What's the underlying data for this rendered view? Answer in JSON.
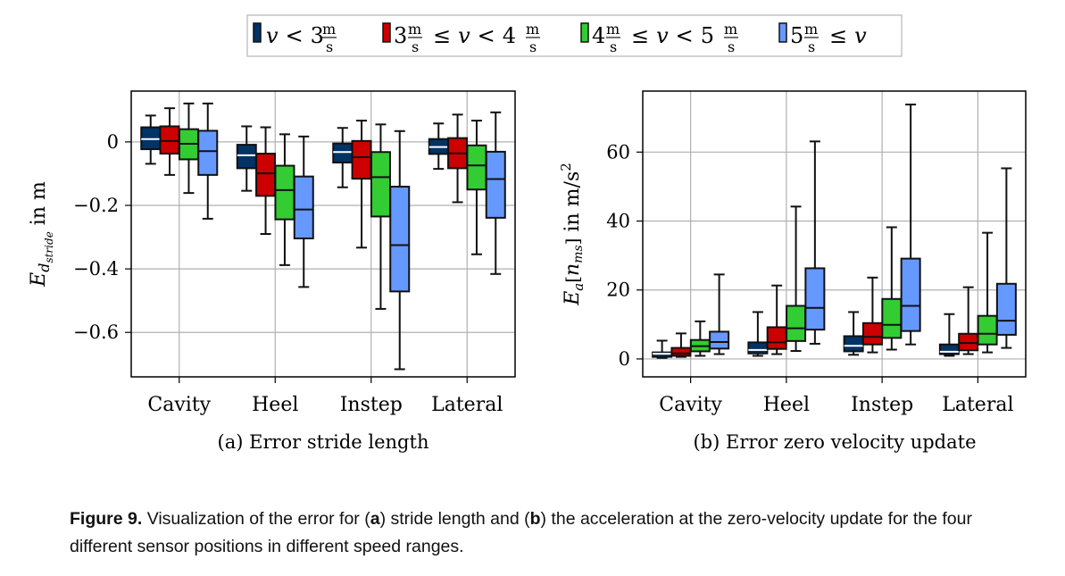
{
  "legend": {
    "items": [
      {
        "label": "v < 3 m/s",
        "color": "#003366"
      },
      {
        "label": "3 m/s ≤ v < 4 m/s",
        "color": "#CC0000"
      },
      {
        "label": "4 m/s ≤ v < 5 m/s",
        "color": "#33CC33"
      },
      {
        "label": "5 m/s ≤ v",
        "color": "#6699FF"
      }
    ]
  },
  "chart_data": [
    {
      "type": "box",
      "title": "(a) Error stride length",
      "xlabel": "",
      "ylabel": "E_d_stride in m",
      "ylim": [
        -0.74,
        0.16
      ],
      "yticks": [
        0,
        -0.2,
        -0.4,
        -0.6
      ],
      "ytick_labels": [
        "0",
        "−0.2",
        "−0.4",
        "−0.6"
      ],
      "grid": true,
      "legend_position": "top",
      "categories": [
        "Cavity",
        "Heel",
        "Instep",
        "Lateral"
      ],
      "series": [
        {
          "name": "v < 3 m/s",
          "boxes": [
            {
              "whisker_low": -0.069,
              "q1": -0.023,
              "median": 0.009,
              "q3": 0.046,
              "whisker_high": 0.083
            },
            {
              "whisker_low": -0.154,
              "q1": -0.083,
              "median": -0.042,
              "q3": -0.009,
              "whisker_high": 0.049
            },
            {
              "whisker_low": -0.143,
              "q1": -0.065,
              "median": -0.032,
              "q3": -0.005,
              "whisker_high": 0.044
            },
            {
              "whisker_low": -0.085,
              "q1": -0.038,
              "median": -0.016,
              "q3": 0.009,
              "whisker_high": 0.058
            }
          ]
        },
        {
          "name": "3 m/s ≤ v < 4 m/s",
          "boxes": [
            {
              "whisker_low": -0.104,
              "q1": -0.037,
              "median": 0.003,
              "q3": 0.049,
              "whisker_high": 0.106
            },
            {
              "whisker_low": -0.29,
              "q1": -0.17,
              "median": -0.099,
              "q3": -0.037,
              "whisker_high": 0.046
            },
            {
              "whisker_low": -0.333,
              "q1": -0.116,
              "median": -0.048,
              "q3": 0.003,
              "whisker_high": 0.067
            },
            {
              "whisker_low": -0.19,
              "q1": -0.083,
              "median": -0.036,
              "q3": 0.012,
              "whisker_high": 0.086
            }
          ]
        },
        {
          "name": "4 m/s ≤ v < 5 m/s",
          "boxes": [
            {
              "whisker_low": -0.161,
              "q1": -0.055,
              "median": -0.006,
              "q3": 0.04,
              "whisker_high": 0.121
            },
            {
              "whisker_low": -0.388,
              "q1": -0.244,
              "median": -0.152,
              "q3": -0.075,
              "whisker_high": 0.024
            },
            {
              "whisker_low": -0.526,
              "q1": -0.235,
              "median": -0.111,
              "q3": -0.032,
              "whisker_high": 0.055
            },
            {
              "whisker_low": -0.354,
              "q1": -0.15,
              "median": -0.074,
              "q3": -0.011,
              "whisker_high": 0.067
            }
          ]
        },
        {
          "name": "5 m/s ≤ v",
          "boxes": [
            {
              "whisker_low": -0.242,
              "q1": -0.104,
              "median": -0.029,
              "q3": 0.035,
              "whisker_high": 0.121
            },
            {
              "whisker_low": -0.457,
              "q1": -0.304,
              "median": -0.213,
              "q3": -0.109,
              "whisker_high": 0.017
            },
            {
              "whisker_low": -0.716,
              "q1": -0.471,
              "median": -0.325,
              "q3": -0.141,
              "whisker_high": 0.034
            },
            {
              "whisker_low": -0.416,
              "q1": -0.239,
              "median": -0.117,
              "q3": -0.031,
              "whisker_high": 0.093
            }
          ]
        }
      ]
    },
    {
      "type": "box",
      "title": "(b) Error zero velocity update",
      "xlabel": "",
      "ylabel": "E_a[n_ms] in m/s²",
      "ylim": [
        -5.2,
        77.7
      ],
      "yticks": [
        0,
        20,
        40,
        60
      ],
      "ytick_labels": [
        "0",
        "20",
        "40",
        "60"
      ],
      "grid": true,
      "legend_position": "top",
      "categories": [
        "Cavity",
        "Heel",
        "Instep",
        "Lateral"
      ],
      "series": [
        {
          "name": "v < 3 m/s",
          "boxes": [
            {
              "whisker_low": 0.3,
              "q1": 0.6,
              "median": 1.5,
              "q3": 1.9,
              "whisker_high": 5.3
            },
            {
              "whisker_low": 0.9,
              "q1": 1.6,
              "median": 2.6,
              "q3": 4.8,
              "whisker_high": 13.6
            },
            {
              "whisker_low": 1.2,
              "q1": 2.2,
              "median": 3.8,
              "q3": 6.6,
              "whisker_high": 13.6
            },
            {
              "whisker_low": 0.9,
              "q1": 1.4,
              "median": 2.1,
              "q3": 4.2,
              "whisker_high": 13.0
            }
          ]
        },
        {
          "name": "3 m/s ≤ v < 4 m/s",
          "boxes": [
            {
              "whisker_low": 0.6,
              "q1": 0.9,
              "median": 1.6,
              "q3": 3.2,
              "whisker_high": 7.4
            },
            {
              "whisker_low": 1.4,
              "q1": 2.9,
              "median": 4.8,
              "q3": 9.2,
              "whisker_high": 21.3
            },
            {
              "whisker_low": 1.9,
              "q1": 4.2,
              "median": 6.4,
              "q3": 10.4,
              "whisker_high": 23.6
            },
            {
              "whisker_low": 1.4,
              "q1": 2.5,
              "median": 4.6,
              "q3": 7.3,
              "whisker_high": 20.8
            }
          ]
        },
        {
          "name": "4 m/s ≤ v < 5 m/s",
          "boxes": [
            {
              "whisker_low": 0.9,
              "q1": 2.2,
              "median": 3.7,
              "q3": 5.5,
              "whisker_high": 10.9
            },
            {
              "whisker_low": 2.3,
              "q1": 5.2,
              "median": 8.9,
              "q3": 15.4,
              "whisker_high": 44.2
            },
            {
              "whisker_low": 2.7,
              "q1": 6.1,
              "median": 9.9,
              "q3": 17.4,
              "whisker_high": 38.2
            },
            {
              "whisker_low": 1.9,
              "q1": 4.2,
              "median": 7.3,
              "q3": 12.5,
              "whisker_high": 36.6
            }
          ]
        },
        {
          "name": "5 m/s ≤ v",
          "boxes": [
            {
              "whisker_low": 1.4,
              "q1": 3.0,
              "median": 4.9,
              "q3": 7.9,
              "whisker_high": 24.5
            },
            {
              "whisker_low": 4.4,
              "q1": 8.5,
              "median": 14.8,
              "q3": 26.3,
              "whisker_high": 63.1
            },
            {
              "whisker_low": 4.2,
              "q1": 8.1,
              "median": 15.4,
              "q3": 29.1,
              "whisker_high": 73.8
            },
            {
              "whisker_low": 3.2,
              "q1": 7.0,
              "median": 11.1,
              "q3": 21.8,
              "whisker_high": 55.3
            }
          ]
        }
      ]
    }
  ],
  "axis_labels": {
    "left_y_main": "E",
    "left_y_sub": "d",
    "left_y_subsub": "stride",
    "left_y_unit": " in m",
    "right_y_main": "E",
    "right_y_sub": "a",
    "right_y_arrow": "→",
    "right_y_bracket_open": "[",
    "right_y_n": "n",
    "right_y_nsub": "ms",
    "right_y_bracket_close": "]",
    "right_y_unit": " in m/s",
    "right_y_sup": "2"
  },
  "legend_parts": {
    "v": "v",
    "lt": "<",
    "le": "≤",
    "m": "m",
    "s": "s",
    "n3": "3",
    "n4": "4",
    "n5": "5"
  },
  "caption": {
    "figure_label": "Figure 9.",
    "text_1": " Visualization of the error for (",
    "a": "a",
    "text_2": ") stride length and (",
    "b": "b",
    "text_3": ") the acceleration at the zero-velocity update for the four different sensor positions in different speed ranges."
  }
}
